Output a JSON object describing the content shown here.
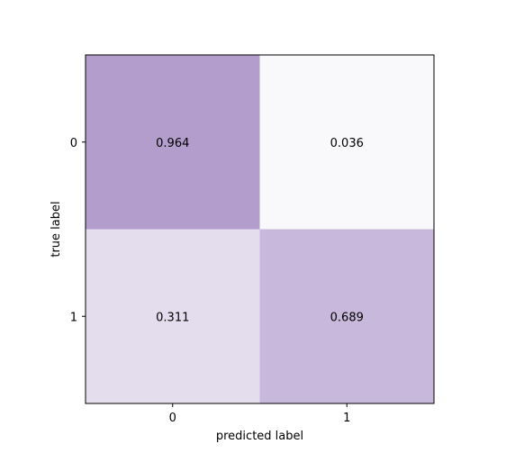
{
  "chart_data": {
    "type": "heatmap",
    "title": "",
    "xlabel": "predicted label",
    "ylabel": "true label",
    "x_categories": [
      "0",
      "1"
    ],
    "y_categories": [
      "0",
      "1"
    ],
    "values": [
      [
        0.964,
        0.036
      ],
      [
        0.311,
        0.689
      ]
    ],
    "value_labels": [
      [
        "0.964",
        "0.036"
      ],
      [
        "0.311",
        "0.689"
      ]
    ],
    "colormap": "Purples",
    "vmin": 0,
    "vmax": 1,
    "color_low": "#fcfbfd",
    "color_high": "#b09acb",
    "frame_color": "#000000"
  }
}
